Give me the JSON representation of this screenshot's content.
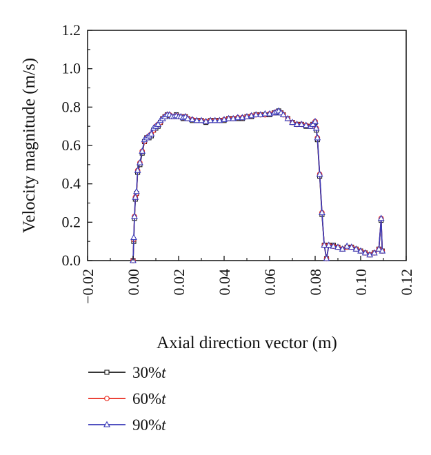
{
  "chart_data": {
    "type": "line",
    "xlabel": "Axial direction vector (m)",
    "ylabel": "Velocity magnitude (m/s)",
    "xlim": [
      -0.02,
      0.12
    ],
    "ylim": [
      0.0,
      1.2
    ],
    "xticks": [
      -0.02,
      0.0,
      0.02,
      0.04,
      0.06,
      0.08,
      0.1,
      0.12
    ],
    "xtick_labels": [
      "−0.02",
      "0.00",
      "0.02",
      "0.04",
      "0.06",
      "0.08",
      "0.10",
      "0.12"
    ],
    "yticks": [
      0.0,
      0.2,
      0.4,
      0.6,
      0.8,
      1.0,
      1.2
    ],
    "ytick_labels": [
      "0.0",
      "0.2",
      "0.4",
      "0.6",
      "0.8",
      "1.0",
      "1.2"
    ],
    "grid": false,
    "legend_position": "bottom-left-below-axes",
    "x": [
      0.0,
      0.0003,
      0.0006,
      0.001,
      0.0015,
      0.002,
      0.003,
      0.004,
      0.005,
      0.006,
      0.007,
      0.008,
      0.009,
      0.01,
      0.011,
      0.012,
      0.013,
      0.014,
      0.015,
      0.016,
      0.017,
      0.018,
      0.019,
      0.02,
      0.021,
      0.022,
      0.023,
      0.024,
      0.026,
      0.028,
      0.03,
      0.032,
      0.034,
      0.036,
      0.038,
      0.04,
      0.042,
      0.044,
      0.046,
      0.048,
      0.05,
      0.052,
      0.054,
      0.056,
      0.058,
      0.06,
      0.062,
      0.063,
      0.064,
      0.065,
      0.066,
      0.068,
      0.07,
      0.072,
      0.074,
      0.076,
      0.078,
      0.079,
      0.08,
      0.0805,
      0.081,
      0.082,
      0.083,
      0.084,
      0.085,
      0.086,
      0.088,
      0.09,
      0.092,
      0.094,
      0.096,
      0.098,
      0.1,
      0.102,
      0.104,
      0.106,
      0.108,
      0.109,
      0.1095
    ],
    "series": [
      {
        "name": "30%t",
        "color": "#1a1a1a",
        "marker": "square",
        "values": [
          0.0,
          0.1,
          0.22,
          0.32,
          0.35,
          0.46,
          0.5,
          0.56,
          0.62,
          0.64,
          0.64,
          0.65,
          0.68,
          0.69,
          0.7,
          0.72,
          0.74,
          0.75,
          0.76,
          0.755,
          0.75,
          0.75,
          0.76,
          0.75,
          0.75,
          0.74,
          0.75,
          0.74,
          0.73,
          0.73,
          0.73,
          0.72,
          0.73,
          0.73,
          0.73,
          0.73,
          0.74,
          0.74,
          0.74,
          0.74,
          0.75,
          0.75,
          0.76,
          0.76,
          0.76,
          0.76,
          0.77,
          0.77,
          0.78,
          0.77,
          0.76,
          0.74,
          0.72,
          0.71,
          0.71,
          0.7,
          0.7,
          0.71,
          0.72,
          0.68,
          0.63,
          0.44,
          0.24,
          0.08,
          0.01,
          0.08,
          0.08,
          0.07,
          0.06,
          0.07,
          0.07,
          0.06,
          0.05,
          0.04,
          0.03,
          0.04,
          0.06,
          0.21,
          0.05
        ]
      },
      {
        "name": "60%t",
        "color": "#e8281c",
        "marker": "circle",
        "values": [
          0.0,
          0.11,
          0.23,
          0.33,
          0.35,
          0.47,
          0.51,
          0.57,
          0.62,
          0.64,
          0.65,
          0.66,
          0.68,
          0.7,
          0.71,
          0.72,
          0.74,
          0.75,
          0.76,
          0.76,
          0.75,
          0.75,
          0.755,
          0.75,
          0.75,
          0.745,
          0.75,
          0.74,
          0.735,
          0.73,
          0.73,
          0.725,
          0.73,
          0.73,
          0.73,
          0.735,
          0.74,
          0.74,
          0.745,
          0.745,
          0.75,
          0.755,
          0.76,
          0.76,
          0.76,
          0.765,
          0.77,
          0.775,
          0.775,
          0.77,
          0.76,
          0.74,
          0.72,
          0.71,
          0.71,
          0.705,
          0.7,
          0.71,
          0.725,
          0.69,
          0.64,
          0.45,
          0.25,
          0.08,
          0.01,
          0.08,
          0.075,
          0.07,
          0.06,
          0.07,
          0.07,
          0.06,
          0.05,
          0.04,
          0.03,
          0.04,
          0.06,
          0.22,
          0.05
        ]
      },
      {
        "name": "90%t",
        "color": "#3a3ab8",
        "marker": "triangle",
        "values": [
          0.0,
          0.12,
          0.23,
          0.33,
          0.36,
          0.47,
          0.51,
          0.57,
          0.63,
          0.64,
          0.65,
          0.66,
          0.69,
          0.7,
          0.71,
          0.73,
          0.74,
          0.75,
          0.76,
          0.76,
          0.75,
          0.75,
          0.755,
          0.75,
          0.75,
          0.745,
          0.75,
          0.74,
          0.735,
          0.73,
          0.73,
          0.725,
          0.73,
          0.73,
          0.73,
          0.735,
          0.74,
          0.74,
          0.745,
          0.745,
          0.75,
          0.755,
          0.76,
          0.76,
          0.765,
          0.765,
          0.77,
          0.775,
          0.78,
          0.77,
          0.76,
          0.74,
          0.72,
          0.71,
          0.71,
          0.705,
          0.7,
          0.71,
          0.725,
          0.69,
          0.64,
          0.45,
          0.25,
          0.08,
          0.01,
          0.08,
          0.075,
          0.07,
          0.06,
          0.075,
          0.07,
          0.06,
          0.05,
          0.04,
          0.03,
          0.04,
          0.06,
          0.22,
          0.05
        ]
      }
    ],
    "legend": [
      {
        "label_main": "30%",
        "label_italic": "t"
      },
      {
        "label_main": "60%",
        "label_italic": "t"
      },
      {
        "label_main": "90%",
        "label_italic": "t"
      }
    ]
  }
}
